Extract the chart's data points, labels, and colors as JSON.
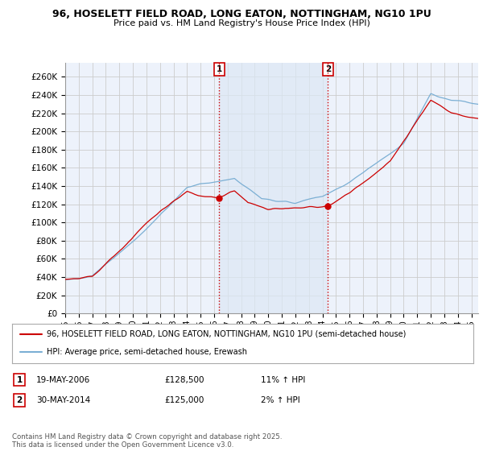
{
  "title_line1": "96, HOSELETT FIELD ROAD, LONG EATON, NOTTINGHAM, NG10 1PU",
  "title_line2": "Price paid vs. HM Land Registry's House Price Index (HPI)",
  "ylabel_ticks": [
    "£0",
    "£20K",
    "£40K",
    "£60K",
    "£80K",
    "£100K",
    "£120K",
    "£140K",
    "£160K",
    "£180K",
    "£200K",
    "£220K",
    "£240K",
    "£260K"
  ],
  "ytick_values": [
    0,
    20000,
    40000,
    60000,
    80000,
    100000,
    120000,
    140000,
    160000,
    180000,
    200000,
    220000,
    240000,
    260000
  ],
  "ylim": [
    0,
    275000
  ],
  "xlim_start": 1995.0,
  "xlim_end": 2025.5,
  "xtick_years": [
    1995,
    1996,
    1997,
    1998,
    1999,
    2000,
    2001,
    2002,
    2003,
    2004,
    2005,
    2006,
    2007,
    2008,
    2009,
    2010,
    2011,
    2012,
    2013,
    2014,
    2015,
    2016,
    2017,
    2018,
    2019,
    2020,
    2021,
    2022,
    2023,
    2024,
    2025
  ],
  "sale1_x": 2006.38,
  "sale1_y": 128500,
  "sale2_x": 2014.41,
  "sale2_y": 125000,
  "legend_line1": "96, HOSELETT FIELD ROAD, LONG EATON, NOTTINGHAM, NG10 1PU (semi-detached house)",
  "legend_line2": "HPI: Average price, semi-detached house, Erewash",
  "table_row1": [
    "1",
    "19-MAY-2006",
    "£128,500",
    "11% ↑ HPI"
  ],
  "table_row2": [
    "2",
    "30-MAY-2014",
    "£125,000",
    "2% ↑ HPI"
  ],
  "footnote": "Contains HM Land Registry data © Crown copyright and database right 2025.\nThis data is licensed under the Open Government Licence v3.0.",
  "red_color": "#cc0000",
  "blue_color": "#7bafd4",
  "shade_color": "#dce8f5",
  "grid_color": "#cccccc",
  "bg_color": "#edf2fb",
  "vline_color": "#cc0000",
  "background_color": "#ffffff"
}
